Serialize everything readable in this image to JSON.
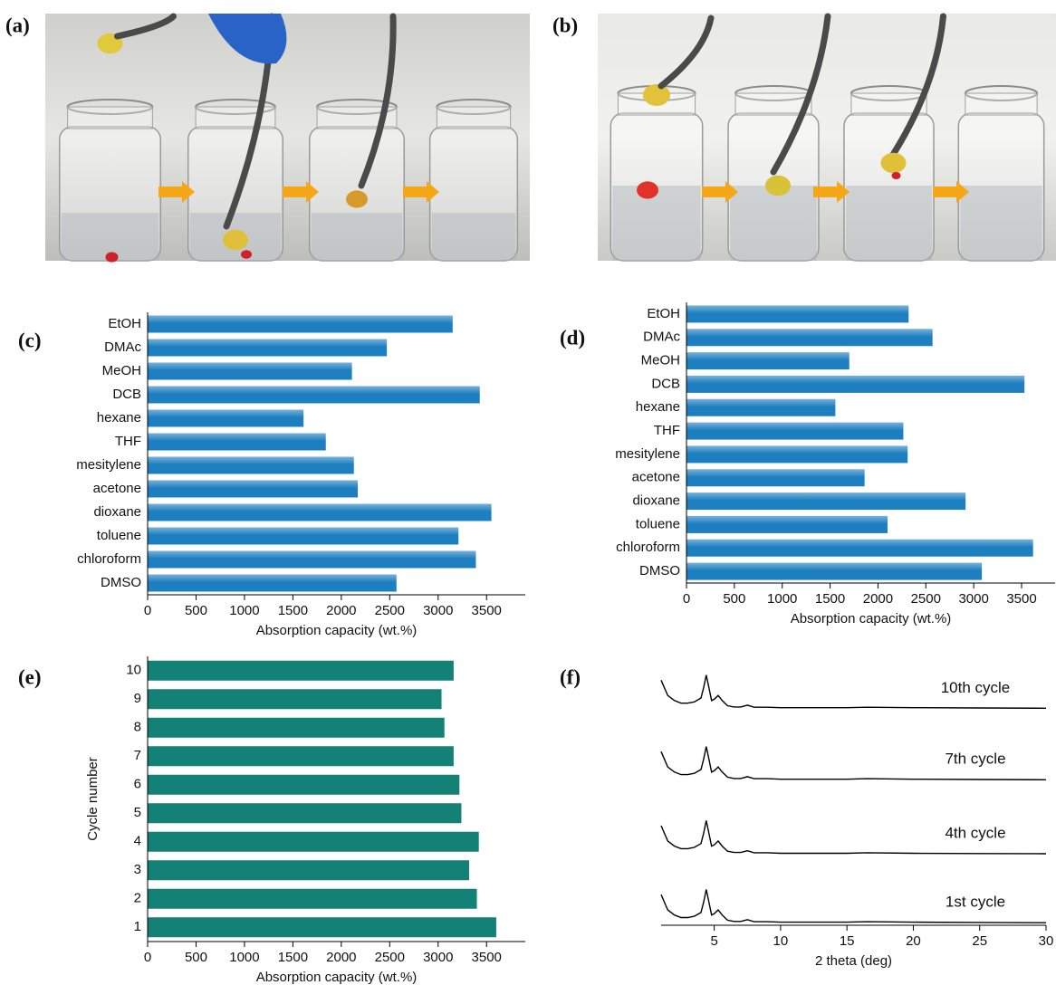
{
  "photo_labels": [
    "(a)",
    "(b)"
  ],
  "chart_data": [
    {
      "type": "bar",
      "horizontal": true,
      "label": "(c)",
      "color": "#1e7fc0",
      "categories": [
        "EtOH",
        "DMAc",
        "MeOH",
        "DCB",
        "hexane",
        "THF",
        "mesitylene",
        "acetone",
        "dioxane",
        "toluene",
        "chloroform",
        "DMSO"
      ],
      "values": [
        3150,
        2470,
        2110,
        3430,
        1610,
        1840,
        2130,
        2170,
        3550,
        3210,
        3390,
        2570
      ],
      "xlim": [
        0,
        3900
      ],
      "xticks": [
        0,
        500,
        1000,
        1500,
        2000,
        2500,
        3000,
        3500
      ],
      "x_label": "Absorption capacity (wt.%)"
    },
    {
      "type": "bar",
      "horizontal": true,
      "label": "(d)",
      "color": "#1e7fc0",
      "categories": [
        "EtOH",
        "DMAc",
        "MeOH",
        "DCB",
        "hexane",
        "THF",
        "mesitylene",
        "acetone",
        "dioxane",
        "toluene",
        "chloroform",
        "DMSO"
      ],
      "values": [
        2320,
        2570,
        1700,
        3530,
        1555,
        2265,
        2310,
        1860,
        2915,
        2100,
        3620,
        3085
      ],
      "xlim": [
        0,
        3850
      ],
      "xticks": [
        0,
        500,
        1000,
        1500,
        2000,
        2500,
        3000,
        3500
      ],
      "x_label": "Absorption capacity (wt.%)"
    },
    {
      "type": "bar",
      "horizontal": true,
      "label": "(e)",
      "color": "#138175",
      "categories": [
        "10",
        "9",
        "8",
        "7",
        "6",
        "5",
        "4",
        "3",
        "2",
        "1"
      ],
      "values": [
        3160,
        3035,
        3065,
        3160,
        3220,
        3240,
        3420,
        3320,
        3400,
        3600
      ],
      "xlim": [
        0,
        3900
      ],
      "xticks": [
        0,
        500,
        1000,
        1500,
        2000,
        2500,
        3000,
        3500
      ],
      "x_label": "Absorption capacity (wt.%)",
      "y_label": "Cycle number"
    },
    {
      "type": "line",
      "label": "(f)",
      "x": [
        1,
        1.5,
        2,
        2.5,
        3,
        3.5,
        4,
        4.2,
        4.4,
        4.6,
        4.8,
        5,
        5.3,
        5.6,
        6,
        6.5,
        7,
        7.5,
        8,
        9,
        10,
        12,
        15,
        16.5,
        20,
        25,
        30
      ],
      "series": [
        {
          "name": "10th cycle",
          "color": "#000000",
          "values": [
            96,
            90,
            88,
            87,
            87,
            87.5,
            89,
            93,
            98,
            93,
            88,
            88.5,
            90,
            88,
            86,
            85.5,
            85.5,
            86.2,
            85.4,
            85.4,
            85.2,
            85.2,
            85.2,
            85.4,
            85.2,
            85.1,
            85
          ]
        },
        {
          "name": "7th cycle",
          "color": "#000000",
          "values": [
            68,
            62,
            60,
            59,
            59,
            59.5,
            61,
            65,
            70,
            65,
            60,
            60.5,
            62,
            60,
            58,
            57.5,
            57.5,
            58.2,
            57.4,
            57.4,
            57.2,
            57.2,
            57.2,
            57.4,
            57.2,
            57.1,
            57
          ]
        },
        {
          "name": "4th cycle",
          "color": "#000000",
          "values": [
            39,
            33,
            31,
            30,
            30,
            30.5,
            32,
            36,
            41,
            36,
            31,
            31.5,
            33,
            31,
            29,
            28.5,
            28.5,
            29.2,
            28.4,
            28.4,
            28.2,
            28.2,
            28.2,
            28.4,
            28.2,
            28.1,
            28
          ]
        },
        {
          "name": "1st cycle",
          "color": "#000000",
          "values": [
            12,
            6,
            4,
            3,
            3,
            3.5,
            5,
            9,
            14,
            9,
            4,
            4.5,
            6,
            4,
            2,
            1.5,
            1.5,
            2.2,
            1.4,
            1.4,
            1.2,
            1.2,
            1.2,
            1.4,
            1.2,
            1.1,
            1
          ]
        }
      ],
      "xlim": [
        1,
        30
      ],
      "ylim": [
        0,
        100
      ],
      "xticks": [
        5,
        10,
        15,
        20,
        25,
        30
      ],
      "x_label": "2 theta (deg)"
    }
  ]
}
